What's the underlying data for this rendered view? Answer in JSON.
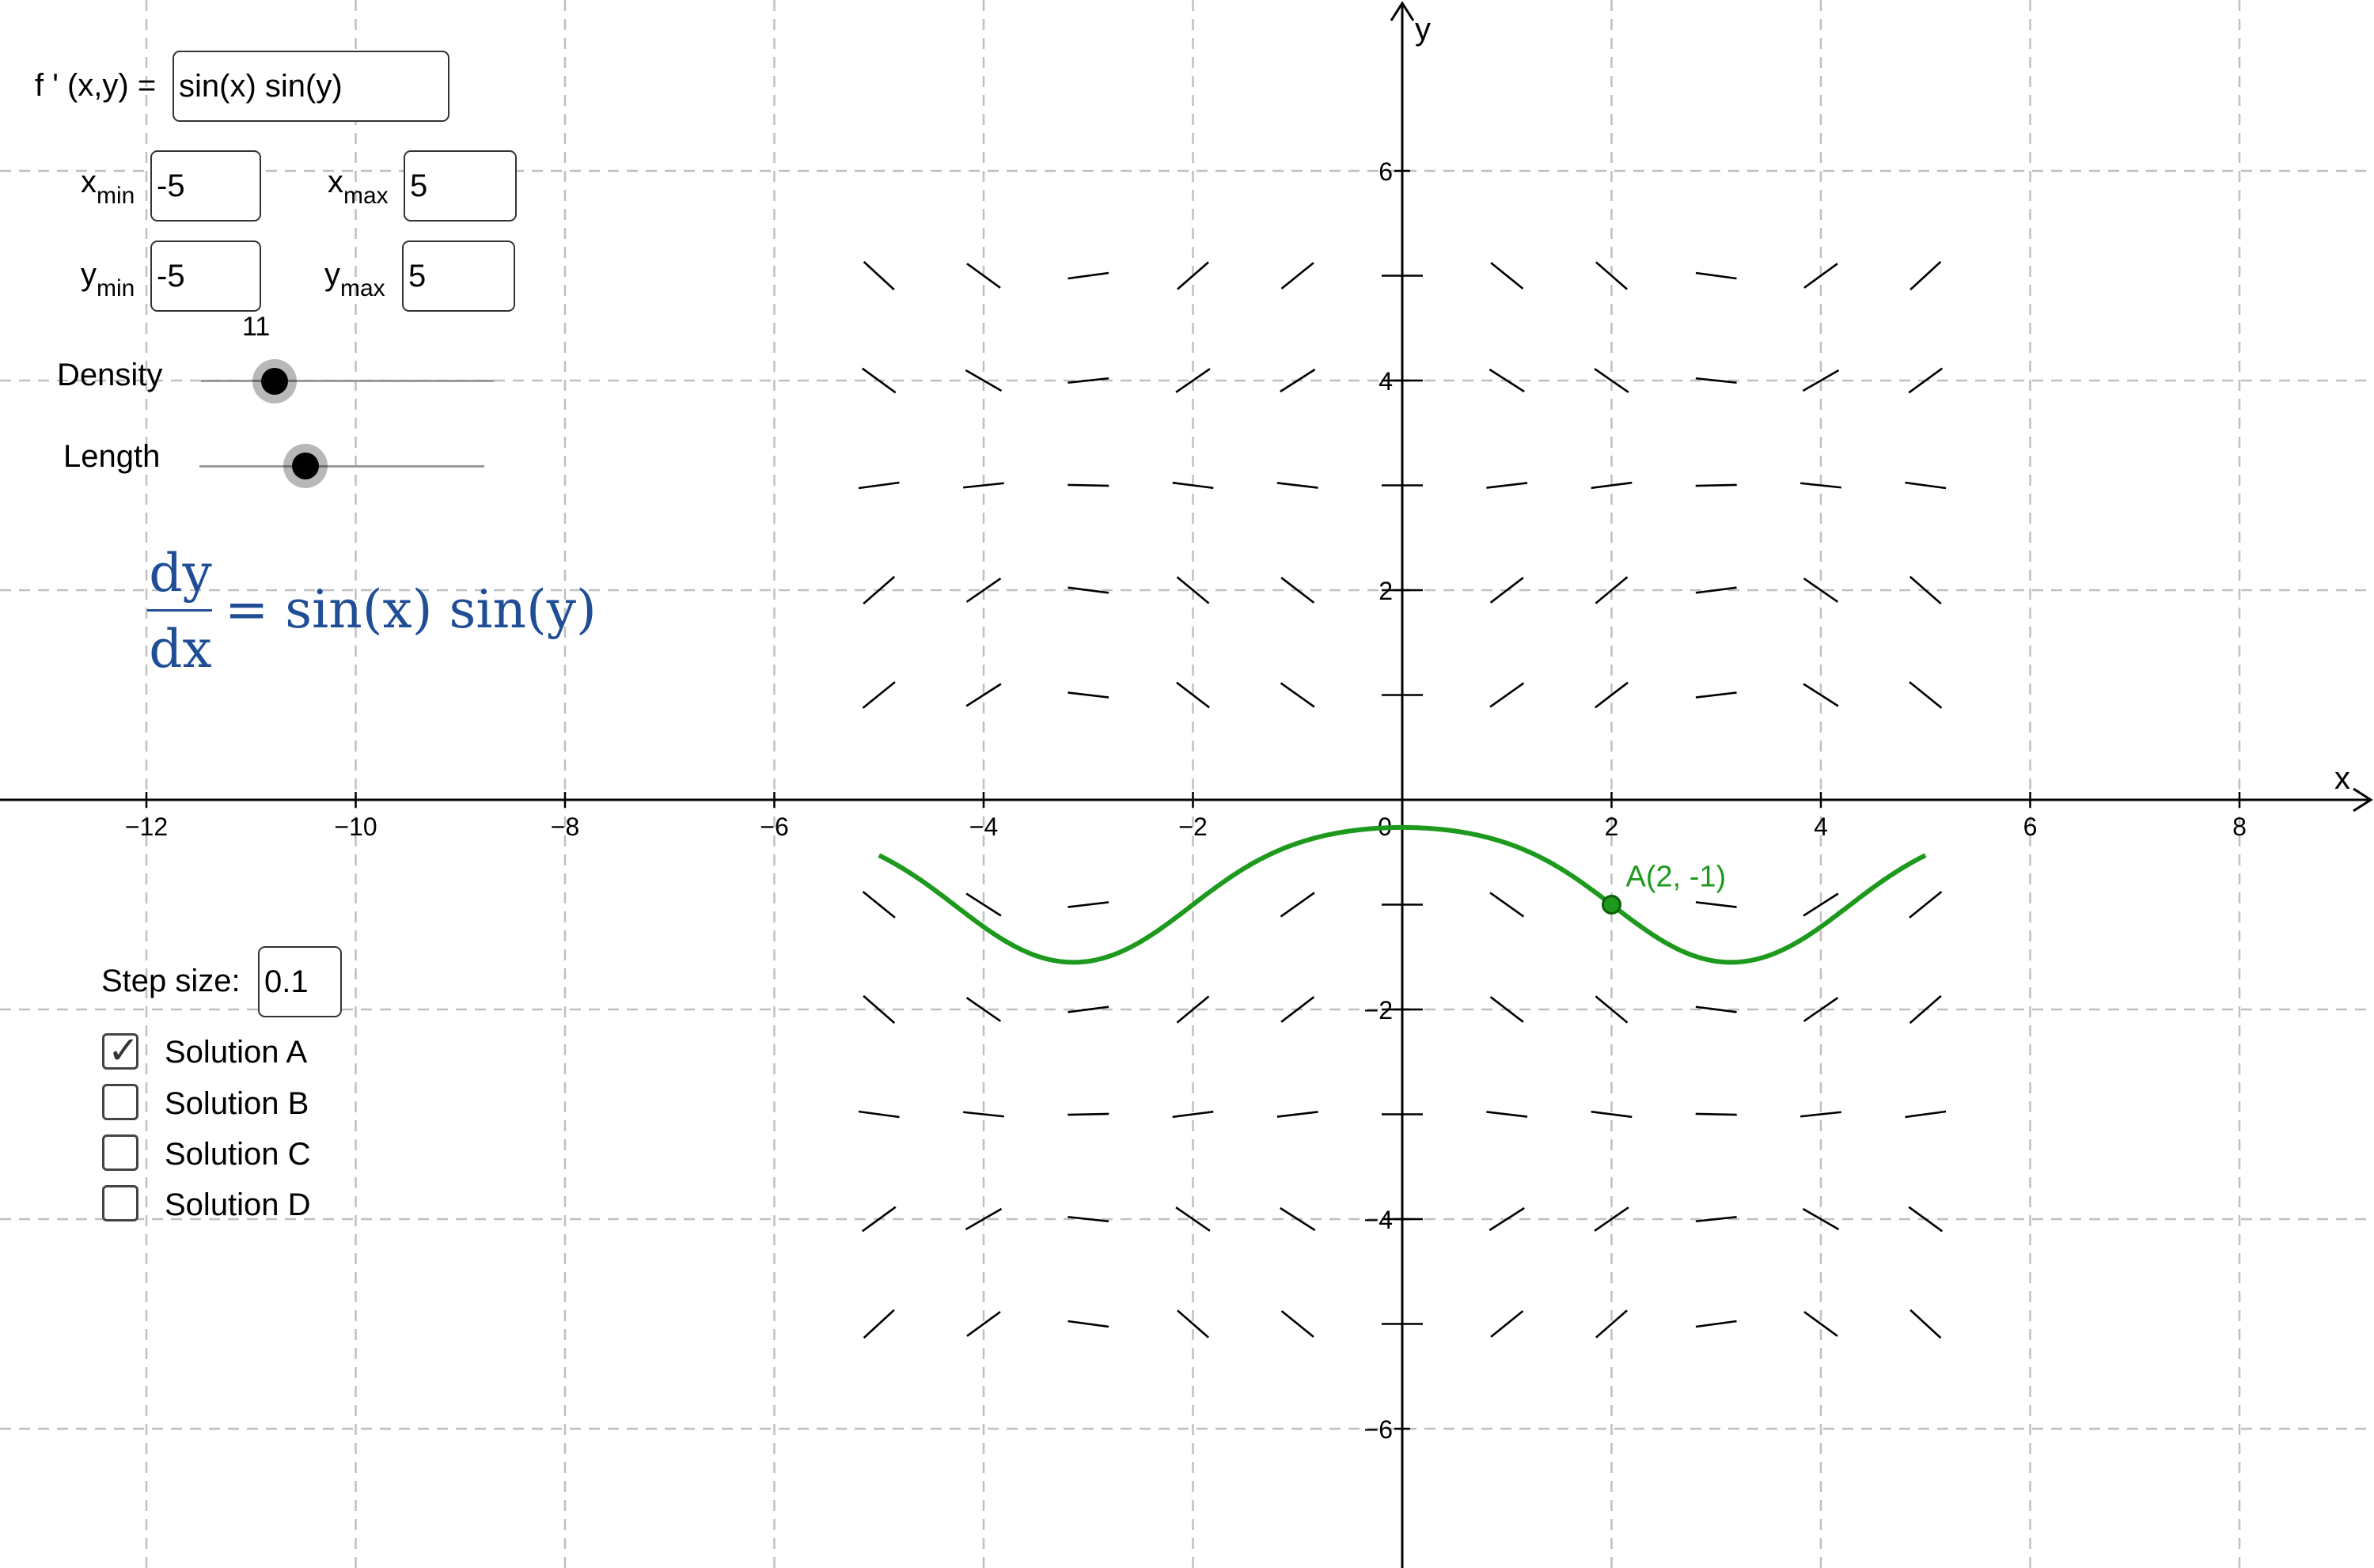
{
  "derivative_input": {
    "label": "f ' (x,y) =",
    "value": "sin(x) sin(y)"
  },
  "bounds": {
    "xmin": {
      "label_main": "x",
      "label_sub": "min",
      "value": "-5"
    },
    "xmax": {
      "label_main": "x",
      "label_sub": "max",
      "value": "5"
    },
    "ymin": {
      "label_main": "y",
      "label_sub": "min",
      "value": "-5"
    },
    "ymax": {
      "label_main": "y",
      "label_sub": "max",
      "value": "5"
    }
  },
  "density": {
    "label": "Density",
    "value_text": "11",
    "value": 11,
    "fraction": 0.26
  },
  "length": {
    "label": "Length",
    "fraction": 0.38
  },
  "equation": {
    "numerator": "dy",
    "denominator": "dx",
    "rhs": "= sin(x)  sin(y)"
  },
  "step_size": {
    "label": "Step size:",
    "value": "0.1"
  },
  "solutions": [
    {
      "label": "Solution A",
      "checked": true
    },
    {
      "label": "Solution B",
      "checked": false
    },
    {
      "label": "Solution C",
      "checked": false
    },
    {
      "label": "Solution D",
      "checked": false
    }
  ],
  "colors": {
    "equation": "#1f4e96",
    "solution": "#1d9a1d",
    "grid": "#c0c0c0",
    "axes": "#000000"
  },
  "chart_data": {
    "type": "line",
    "xlabel": "x",
    "ylabel": "y",
    "xlim": [
      -13.3,
      9.1
    ],
    "ylim": [
      -7.32,
      7.38
    ],
    "grid": true,
    "x_ticks": [
      -12,
      -10,
      -8,
      -6,
      -4,
      -2,
      0,
      2,
      4,
      6,
      8
    ],
    "y_ticks": [
      -6,
      -4,
      -2,
      2,
      4,
      6
    ],
    "x_tick_labels": [
      "−12",
      "−10",
      "−8",
      "−6",
      "−4",
      "−2",
      "0",
      "2",
      "4",
      "6",
      "8"
    ],
    "y_tick_labels": [
      "−6",
      "−4",
      "−2",
      "2",
      "4",
      "6"
    ],
    "slope_field": {
      "function": "sin(x) sin(y)",
      "x_range": [
        -5,
        5
      ],
      "y_range": [
        -5,
        5
      ],
      "density": 11
    },
    "point": {
      "label": "A(2, -1)",
      "x": 2,
      "y": -1
    },
    "solution_curve": {
      "name": "Solution A",
      "x_range": [
        -5,
        5
      ],
      "through": [
        2,
        -1
      ]
    }
  }
}
